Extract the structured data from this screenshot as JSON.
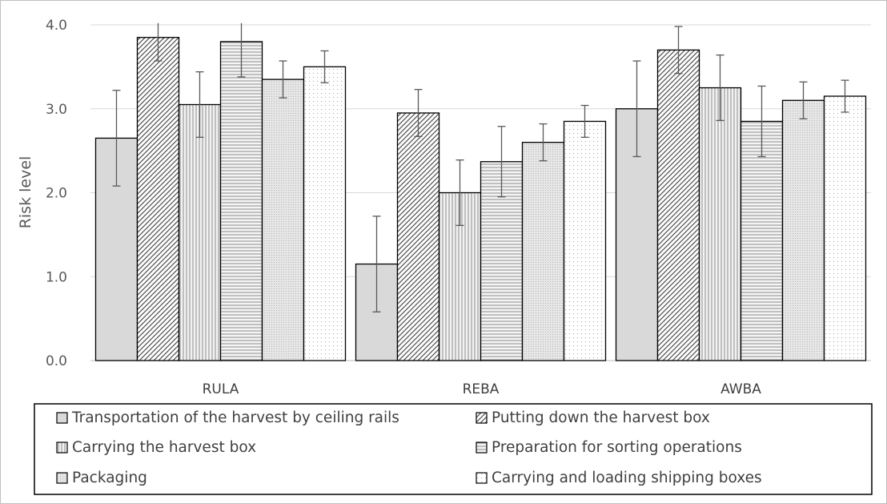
{
  "chart_data": {
    "type": "bar",
    "title": "",
    "xlabel": "",
    "ylabel": "Risk level",
    "ylim": [
      0,
      4
    ],
    "yticks": [
      "0.0",
      "1.0",
      "2.0",
      "3.0",
      "4.0"
    ],
    "grid": true,
    "legend_position": "bottom",
    "error_bars": true,
    "categories": [
      "RULA",
      "REBA",
      "AWBA"
    ],
    "series": [
      {
        "name": "Transportation of the harvest by ceiling rails",
        "pattern": "solid",
        "values": [
          2.65,
          1.15,
          3.0
        ],
        "errors": [
          0.57,
          0.57,
          0.57
        ]
      },
      {
        "name": "Putting down the harvest box",
        "pattern": "diagonal",
        "values": [
          3.85,
          2.95,
          3.7
        ],
        "errors": [
          0.28,
          0.28,
          0.28
        ]
      },
      {
        "name": "Carrying the harvest box",
        "pattern": "vertical",
        "values": [
          3.05,
          2.0,
          3.25
        ],
        "errors": [
          0.39,
          0.39,
          0.39
        ]
      },
      {
        "name": "Preparation for sorting operations",
        "pattern": "horizontal",
        "values": [
          3.8,
          2.37,
          2.85
        ],
        "errors": [
          0.42,
          0.42,
          0.42
        ]
      },
      {
        "name": "Packaging",
        "pattern": "fine",
        "values": [
          3.35,
          2.6,
          3.1
        ],
        "errors": [
          0.22,
          0.22,
          0.22
        ]
      },
      {
        "name": "Carrying and loading shipping boxes",
        "pattern": "dots",
        "values": [
          3.5,
          2.85,
          3.15
        ],
        "errors": [
          0.19,
          0.19,
          0.19
        ]
      }
    ]
  }
}
